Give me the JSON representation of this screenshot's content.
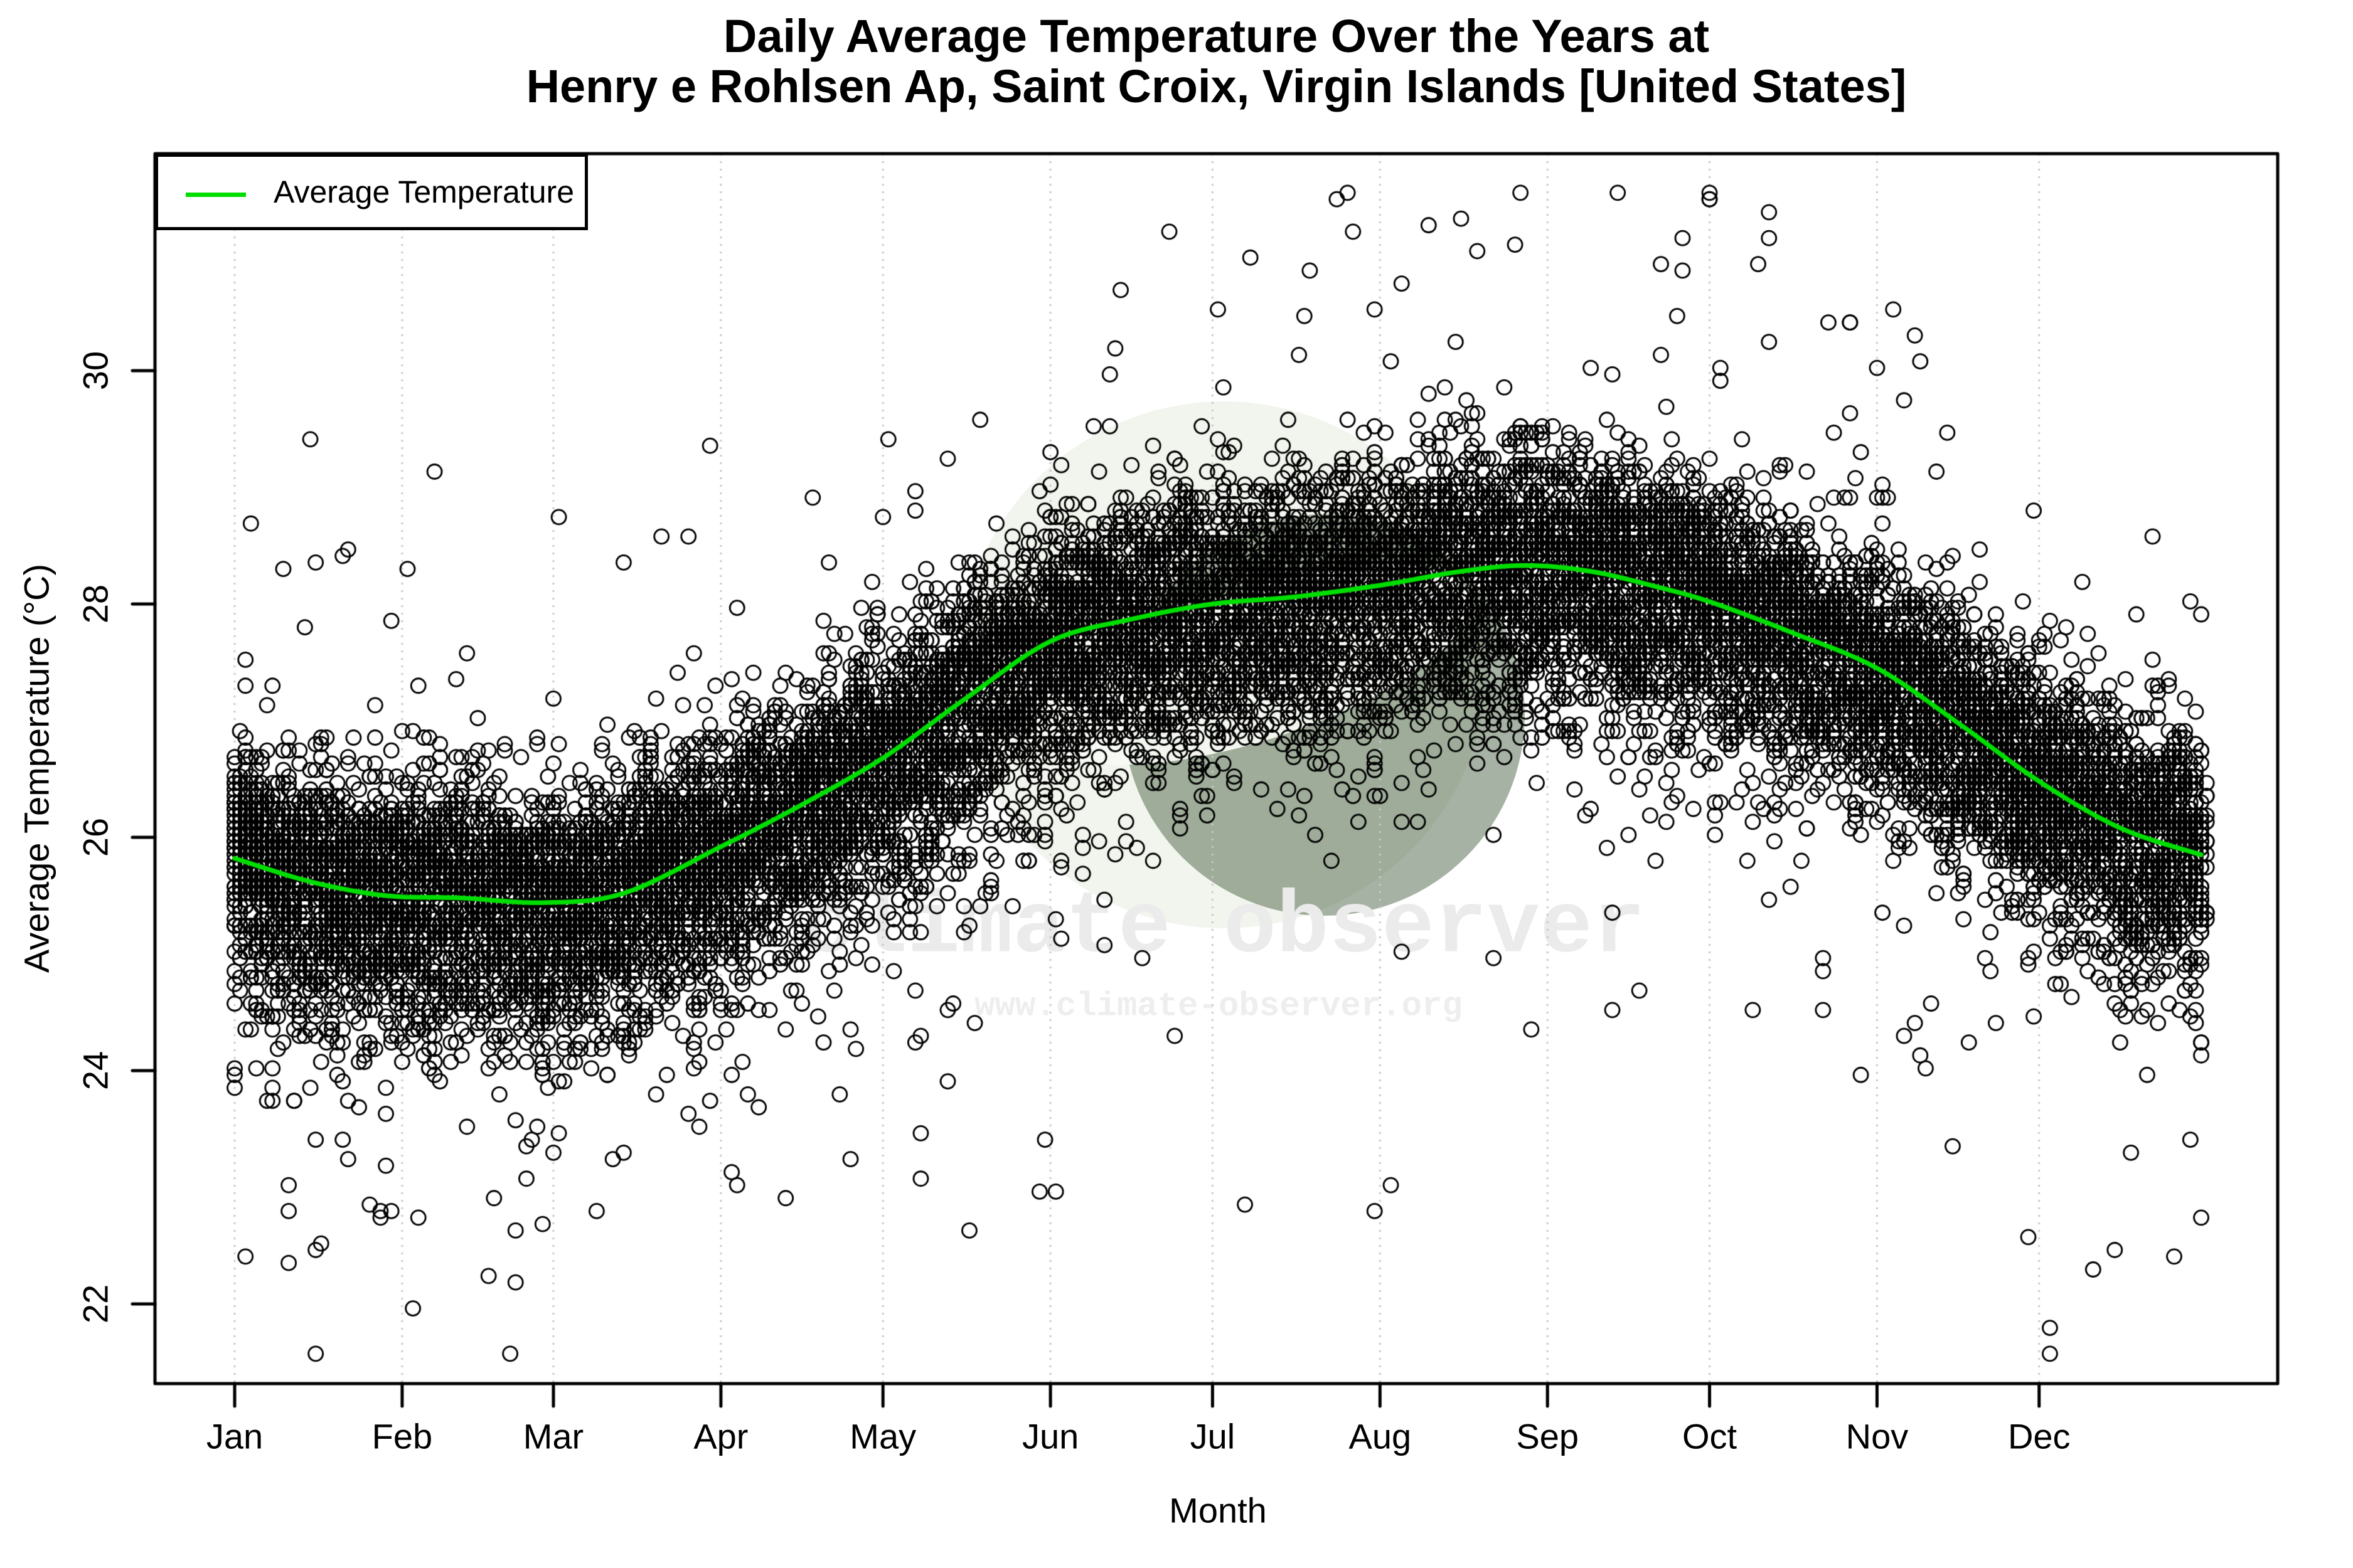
{
  "chart_data": {
    "type": "scatter",
    "title_line1": "Daily Average Temperature Over the Years at",
    "title_line2": "Henry e Rohlsen Ap, Saint Croix, Virgin Islands [United States]",
    "xlabel": "Month",
    "ylabel": "Average Temperature (°C)",
    "x_axis": {
      "ticks": [
        {
          "label": "Jan",
          "day": 1
        },
        {
          "label": "Feb",
          "day": 32
        },
        {
          "label": "Mar",
          "day": 60
        },
        {
          "label": "Apr",
          "day": 91
        },
        {
          "label": "May",
          "day": 121
        },
        {
          "label": "Jun",
          "day": 152
        },
        {
          "label": "Jul",
          "day": 182
        },
        {
          "label": "Aug",
          "day": 213
        },
        {
          "label": "Sep",
          "day": 244
        },
        {
          "label": "Oct",
          "day": 274
        },
        {
          "label": "Nov",
          "day": 305
        },
        {
          "label": "Dec",
          "day": 335
        }
      ],
      "range_days": [
        1,
        366
      ],
      "grid": "dotted-vertical"
    },
    "y_axis": {
      "ticks": [
        22,
        24,
        26,
        28,
        30
      ],
      "range": [
        21.4,
        31.8
      ]
    },
    "legend": {
      "label": "Average Temperature",
      "position": "top-left"
    },
    "colors": {
      "curve": "#00dd00",
      "points": "#000000",
      "grid": "#c9c9c9",
      "axis": "#000000"
    },
    "average_curve": {
      "points": [
        [
          1,
          25.82
        ],
        [
          15,
          25.62
        ],
        [
          29,
          25.5
        ],
        [
          43,
          25.48
        ],
        [
          58,
          25.44
        ],
        [
          73,
          25.52
        ],
        [
          91,
          25.92
        ],
        [
          106,
          26.28
        ],
        [
          121,
          26.68
        ],
        [
          136,
          27.18
        ],
        [
          152,
          27.68
        ],
        [
          167,
          27.87
        ],
        [
          182,
          28.0
        ],
        [
          197,
          28.06
        ],
        [
          213,
          28.16
        ],
        [
          228,
          28.28
        ],
        [
          240,
          28.33
        ],
        [
          252,
          28.28
        ],
        [
          264,
          28.15
        ],
        [
          274,
          28.02
        ],
        [
          289,
          27.76
        ],
        [
          305,
          27.45
        ],
        [
          320,
          26.98
        ],
        [
          335,
          26.48
        ],
        [
          350,
          26.08
        ],
        [
          365,
          25.85
        ]
      ]
    },
    "scatter": {
      "marker": "open-circle",
      "years": 45,
      "sigma_above": 0.48,
      "sigma_below": 0.62,
      "tail_prob": 0.04,
      "tail_min": 0.5,
      "tail_scale": 0.8,
      "tail_cap": 3.2,
      "tail_neg_frac_winter": 0.78,
      "tail_neg_frac_summer": 0.5,
      "quantize_c": 0.0556,
      "leap_every": 4,
      "temp_min": 21.5,
      "temp_max": 31.55,
      "seed": 1987
    },
    "outlier_points": [
      [
        3,
        22.4
      ],
      [
        16,
        28.35
      ],
      [
        22,
        28.45
      ],
      [
        28,
        22.75
      ],
      [
        35,
        22.75
      ],
      [
        38,
        29.15
      ],
      [
        60,
        23.3
      ],
      [
        68,
        22.8
      ],
      [
        73,
        28.35
      ],
      [
        103,
        22.9
      ],
      [
        108,
        28.9
      ],
      [
        128,
        24.3
      ],
      [
        133,
        23.9
      ],
      [
        137,
        22.65
      ],
      [
        150,
        22.95
      ],
      [
        153,
        22.95
      ],
      [
        188,
        22.85
      ],
      [
        212,
        22.8
      ],
      [
        215,
        23.0
      ],
      [
        231,
        31.0
      ],
      [
        238,
        31.1
      ],
      [
        241,
        24.35
      ],
      [
        256,
        24.5
      ],
      [
        257,
        31.5
      ],
      [
        265,
        30.9
      ],
      [
        274,
        31.45
      ],
      [
        283,
        30.9
      ],
      [
        300,
        30.4
      ],
      [
        305,
        30.0
      ],
      [
        312,
        30.3
      ],
      [
        333,
        22.6
      ],
      [
        337,
        21.77
      ],
      [
        337,
        21.58
      ],
      [
        345,
        22.3
      ],
      [
        352,
        23.3
      ],
      [
        360,
        22.4
      ],
      [
        363,
        23.4
      ]
    ],
    "watermark": {
      "text": "climate observer",
      "url": "www.climate-observer.org",
      "text_color": "#ebebeb",
      "url_color": "#eeeeee",
      "logo_disc_color": "#f2f5ee",
      "logo_globe_color": "rgba(32,62,26,0.40)",
      "logo_swoosh_color": "rgba(247,250,243,0.95)"
    }
  }
}
